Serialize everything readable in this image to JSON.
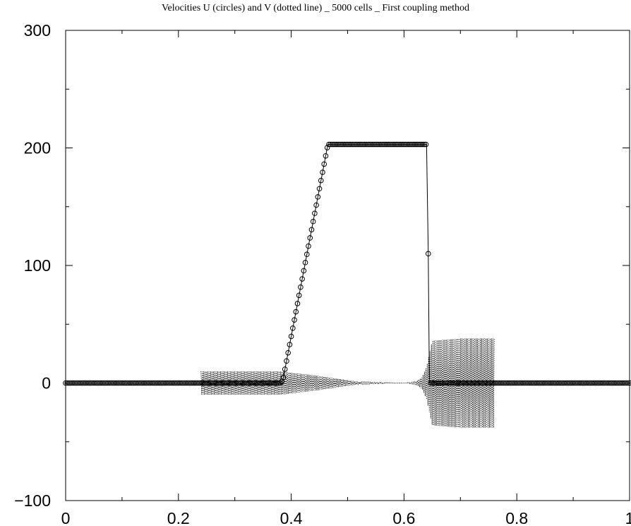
{
  "chart_data": {
    "type": "line",
    "title": "Velocities U (circles) and V (dotted line)  _   5000 cells _ First coupling method",
    "xlabel": "",
    "ylabel": "",
    "xlim": [
      0,
      1
    ],
    "ylim": [
      -100,
      300
    ],
    "x_ticks": [
      0,
      0.2,
      0.4,
      0.6,
      0.8,
      1
    ],
    "x_tick_labels": [
      "0",
      "0.2",
      "0.4",
      "0.6",
      "0.8",
      "1"
    ],
    "y_ticks": [
      -100,
      0,
      100,
      200,
      300
    ],
    "y_tick_labels": [
      "−100",
      "0",
      "100",
      "200",
      "300"
    ],
    "grid": false,
    "legend": "none",
    "series": [
      {
        "marker": "circle",
        "line": "solid",
        "x": [
          0,
          0.2,
          0.38,
          0.385,
          0.465,
          0.5,
          0.6,
          0.64,
          0.643,
          0.645,
          0.65,
          0.8,
          1.0
        ],
        "y": [
          0,
          0,
          0,
          2,
          203,
          203,
          203,
          203,
          110,
          0,
          0,
          0,
          0
        ]
      },
      {
        "marker": "none",
        "line": "dotted",
        "x": [
          0.24,
          0.38,
          0.45,
          0.52,
          0.6,
          0.62,
          0.632,
          0.64,
          0.65,
          0.7,
          0.76
        ],
        "amplitude": [
          10,
          10,
          6,
          1,
          0,
          1,
          5,
          14,
          36,
          38,
          38
        ]
      }
    ]
  }
}
